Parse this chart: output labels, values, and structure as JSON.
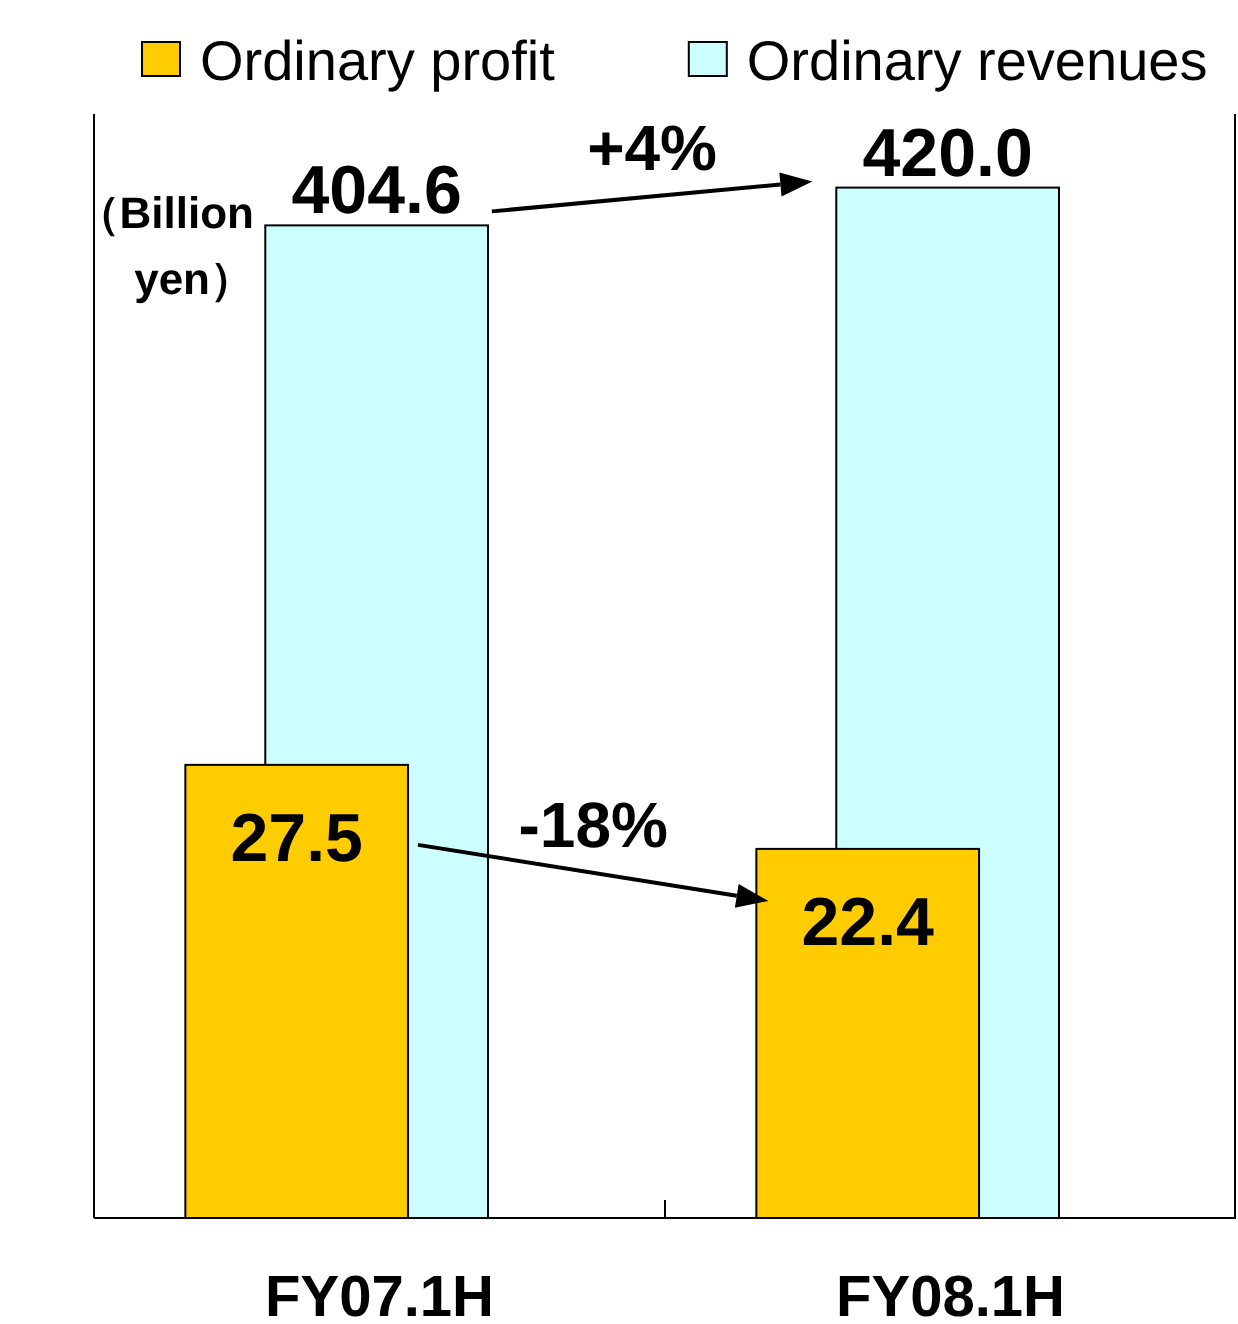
{
  "chart_data": {
    "type": "bar",
    "categories": [
      "FY07.1H",
      "FY08.1H"
    ],
    "series": [
      {
        "name": "Ordinary profit",
        "color": "#ffcc00",
        "values": [
          27.5,
          22.4
        ],
        "value_labels": [
          "27.5",
          "22.4"
        ]
      },
      {
        "name": "Ordinary revenues",
        "color": "#ccffff",
        "values": [
          404.6,
          420.0
        ],
        "value_labels": [
          "404.6",
          "420.0"
        ],
        "axis": "y2"
      }
    ],
    "ylim": [
      0,
      67
    ],
    "y2lim": [
      0,
      450
    ],
    "tick_labels": "x",
    "legend": "top",
    "annotations": [
      "+4%",
      "-18%",
      "（Billion yen）"
    ]
  }
}
